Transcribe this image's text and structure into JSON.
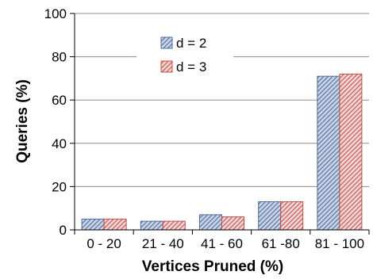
{
  "chart_data": {
    "type": "bar",
    "title": "",
    "xlabel": "Vertices Pruned (%)",
    "ylabel": "Queries (%)",
    "categories": [
      "0 - 20",
      "21 - 40",
      "41 - 60",
      "61 -80",
      "81 - 100"
    ],
    "series": [
      {
        "name": "d = 2",
        "values": [
          5,
          4,
          7,
          13,
          71
        ],
        "color": "#4f6b9a",
        "hatch_background": "#c9d3e6"
      },
      {
        "name": "d = 3",
        "values": [
          5,
          4,
          6,
          13,
          72
        ],
        "color": "#c0504d",
        "hatch_background": "#f2d5d4"
      }
    ],
    "ylim": [
      0,
      100
    ],
    "yticks": [
      0,
      20,
      40,
      60,
      80,
      100
    ],
    "grid": true,
    "legend_position": "top-center"
  }
}
